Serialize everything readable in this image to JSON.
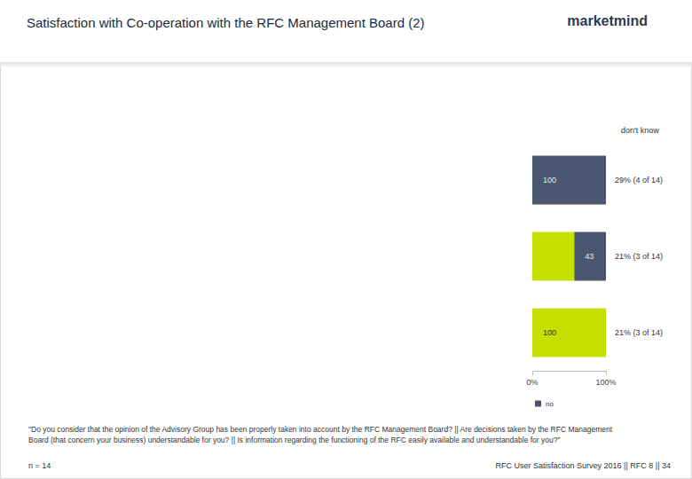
{
  "page": {
    "title": "Satisfaction with Co-operation with the RFC Management Board (2)",
    "logo": "marketmind",
    "note": "\"Do you consider that the opinion of the Advisory Group has been properly taken into account by the RFC Management Board? || Are decisions taken by the RFC Management Board (that concern your business) understandable for you? || Is information regarding the functioning of the RFC easily available and understandable for you?\"",
    "n": "n = 14",
    "footer": "RFC User Satisfaction Survey 2016 || RFC 8 || 34"
  },
  "chart_data": {
    "type": "bar",
    "orientation": "horizontal",
    "stacked": true,
    "data_labels": true,
    "grid": false,
    "categories": [
      null,
      null,
      null
    ],
    "series": [
      {
        "color": "#c5e000",
        "values": [
          0,
          57,
          100
        ],
        "value_labels": [
          null,
          null,
          "100"
        ]
      },
      {
        "name": "no",
        "color": "#4a5670",
        "values": [
          100,
          43,
          0
        ],
        "value_labels": [
          "100",
          "43",
          null
        ]
      }
    ],
    "xlim": [
      0,
      100
    ],
    "xticks": [
      {
        "value": 0,
        "label": "0%"
      },
      {
        "value": 100,
        "label": "100%"
      }
    ],
    "legend": "bottom",
    "annotations": {
      "header": "don't know",
      "labels": [
        "29% (4 of 14)",
        "21% (3 of 14)",
        "21% (3 of 14)"
      ]
    }
  }
}
